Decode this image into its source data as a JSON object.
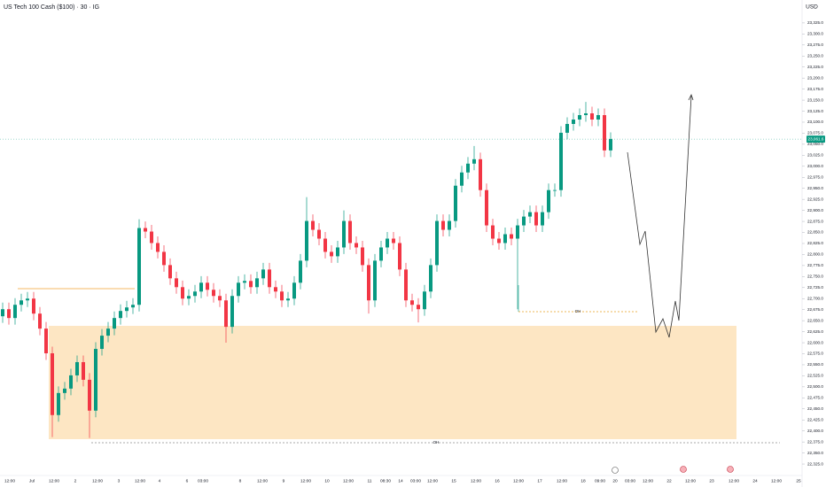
{
  "chart_data": {
    "type": "candlestick",
    "title": "US Tech 100 Cash ($100) · 30 · IG",
    "currency": "USD",
    "up_color": "#089981",
    "down_color": "#f23645",
    "grid": false,
    "ylim": [
      22299,
      23377
    ],
    "yticks": [
      {
        "value": 23325,
        "label": "23,325.0"
      },
      {
        "value": 23300,
        "label": "23,300.0"
      },
      {
        "value": 23275,
        "label": "23,275.0"
      },
      {
        "value": 23250,
        "label": "23,250.0"
      },
      {
        "value": 23225,
        "label": "23,225.0"
      },
      {
        "value": 23200,
        "label": "23,200.0"
      },
      {
        "value": 23175,
        "label": "23,175.0"
      },
      {
        "value": 23150,
        "label": "23,150.0"
      },
      {
        "value": 23125,
        "label": "23,125.0"
      },
      {
        "value": 23100,
        "label": "23,100.0"
      },
      {
        "value": 23075,
        "label": "23,075.0"
      },
      {
        "value": 23050,
        "label": "23,050.0"
      },
      {
        "value": 23025,
        "label": "23,025.0"
      },
      {
        "value": 23000,
        "label": "23,000.0"
      },
      {
        "value": 22975,
        "label": "22,975.0"
      },
      {
        "value": 22950,
        "label": "22,950.0"
      },
      {
        "value": 22925,
        "label": "22,925.0"
      },
      {
        "value": 22900,
        "label": "22,900.0"
      },
      {
        "value": 22875,
        "label": "22,875.0"
      },
      {
        "value": 22850,
        "label": "22,850.0"
      },
      {
        "value": 22825,
        "label": "22,825.0"
      },
      {
        "value": 22800,
        "label": "22,800.0"
      },
      {
        "value": 22775,
        "label": "22,775.0"
      },
      {
        "value": 22750,
        "label": "22,750.0"
      },
      {
        "value": 22725,
        "label": "22,725.0"
      },
      {
        "value": 22700,
        "label": "22,700.0"
      },
      {
        "value": 22675,
        "label": "22,675.0"
      },
      {
        "value": 22650,
        "label": "22,650.0"
      },
      {
        "value": 22625,
        "label": "22,625.0"
      },
      {
        "value": 22600,
        "label": "22,600.0"
      },
      {
        "value": 22575,
        "label": "22,575.0"
      },
      {
        "value": 22550,
        "label": "22,550.0"
      },
      {
        "value": 22525,
        "label": "22,525.0"
      },
      {
        "value": 22500,
        "label": "22,500.0"
      },
      {
        "value": 22475,
        "label": "22,475.0"
      },
      {
        "value": 22450,
        "label": "22,450.0"
      },
      {
        "value": 22425,
        "label": "22,425.0"
      },
      {
        "value": 22400,
        "label": "22,400.0"
      },
      {
        "value": 22375,
        "label": "22,375.0"
      },
      {
        "value": 22350,
        "label": "22,350.0"
      },
      {
        "value": 22325,
        "label": "22,325.0"
      }
    ],
    "last_price": {
      "value": 23061.6,
      "label": "23,061.6"
    },
    "x_labels": [
      "12:00",
      "Jul",
      "12:00",
      "2",
      "12:00",
      "3",
      "12:00",
      "4",
      "6",
      "03:00",
      "8",
      "12:00",
      "9",
      "12:00",
      "10",
      "12:00",
      "11",
      "08:30",
      "14",
      "03:00",
      "12:00",
      "15",
      "12:00",
      "16",
      "12:00",
      "17",
      "12:00",
      "18",
      "09:00",
      "20",
      "03:00",
      "12:00",
      "22",
      "12:00",
      "23",
      "12:00",
      "24",
      "12:00",
      "25"
    ],
    "annotations": [
      "OH",
      "OH"
    ],
    "open": [
      22660,
      22676,
      22656,
      22686,
      22696,
      22700,
      22666,
      22632,
      22576,
      22436,
      22486,
      22496,
      22526,
      22556,
      22516,
      22446,
      22586,
      22616,
      22632,
      22656,
      22672,
      22680,
      22686,
      22860,
      22852,
      22826,
      22806,
      22776,
      22746,
      22726,
      22700,
      22706,
      22716,
      22736,
      22720,
      22706,
      22696,
      22636,
      22706,
      22736,
      22740,
      22726,
      22746,
      22766,
      22726,
      22716,
      22696,
      22700,
      22736,
      22786,
      22876,
      22856,
      22836,
      22806,
      22796,
      22816,
      22876,
      22826,
      22816,
      22776,
      22696,
      22786,
      22816,
      22836,
      22826,
      22766,
      22696,
      22686,
      22676,
      22716,
      22776,
      22876,
      22856,
      22876,
      22956,
      22986,
      23006,
      23016,
      22946,
      22866,
      22836,
      22826,
      22846,
      22836,
      22866,
      22886,
      22896,
      22866,
      22896,
      22946,
      22946,
      23076,
      23096,
      23106,
      23116,
      23120,
      23106,
      23116,
      23036
    ],
    "high": [
      22691,
      22691,
      22701,
      22711,
      22715,
      22715,
      22681,
      22647,
      22591,
      22501,
      22511,
      22541,
      22571,
      22571,
      22531,
      22601,
      22631,
      22647,
      22671,
      22687,
      22695,
      22701,
      22880,
      22875,
      22867,
      22841,
      22821,
      22791,
      22761,
      22741,
      22721,
      22731,
      22751,
      22751,
      22735,
      22721,
      22711,
      22721,
      22751,
      22755,
      22755,
      22761,
      22781,
      22781,
      22741,
      22731,
      22715,
      22751,
      22801,
      22930,
      22891,
      22871,
      22851,
      22821,
      22831,
      22900,
      22891,
      22841,
      22831,
      22791,
      22801,
      22831,
      22851,
      22851,
      22841,
      22781,
      22711,
      22701,
      22731,
      22791,
      22891,
      22891,
      22891,
      22971,
      23001,
      23021,
      23046,
      23031,
      22961,
      22881,
      22851,
      22861,
      22861,
      22881,
      22901,
      22911,
      22911,
      22911,
      22961,
      22961,
      23091,
      23111,
      23121,
      23131,
      23146,
      23135,
      23131,
      23131,
      23077
    ],
    "low": [
      22645,
      22641,
      22641,
      22671,
      22681,
      22651,
      22617,
      22561,
      22386,
      22421,
      22471,
      22481,
      22511,
      22501,
      22384,
      22431,
      22571,
      22601,
      22617,
      22641,
      22657,
      22665,
      22671,
      22837,
      22811,
      22791,
      22761,
      22731,
      22711,
      22685,
      22685,
      22691,
      22701,
      22705,
      22691,
      22681,
      22600,
      22621,
      22691,
      22721,
      22711,
      22711,
      22731,
      22711,
      22701,
      22681,
      22681,
      22685,
      22721,
      22771,
      22841,
      22821,
      22791,
      22781,
      22781,
      22801,
      22811,
      22801,
      22761,
      22666,
      22681,
      22771,
      22801,
      22811,
      22751,
      22681,
      22671,
      22646,
      22661,
      22701,
      22761,
      22841,
      22841,
      22861,
      22941,
      22971,
      22991,
      22931,
      22851,
      22821,
      22811,
      22811,
      22821,
      22676,
      22851,
      22871,
      22851,
      22851,
      22881,
      22931,
      22931,
      23061,
      23081,
      23091,
      23101,
      23091,
      23091,
      23021,
      23021
    ],
    "close": [
      22676,
      22656,
      22686,
      22696,
      22700,
      22666,
      22632,
      22576,
      22436,
      22486,
      22496,
      22526,
      22556,
      22516,
      22446,
      22586,
      22616,
      22632,
      22656,
      22672,
      22680,
      22686,
      22860,
      22852,
      22826,
      22806,
      22776,
      22746,
      22726,
      22700,
      22706,
      22716,
      22736,
      22720,
      22706,
      22696,
      22636,
      22706,
      22736,
      22740,
      22726,
      22746,
      22766,
      22726,
      22716,
      22696,
      22700,
      22736,
      22786,
      22876,
      22856,
      22836,
      22806,
      22796,
      22816,
      22876,
      22826,
      22816,
      22776,
      22696,
      22786,
      22816,
      22836,
      22826,
      22766,
      22696,
      22686,
      22676,
      22716,
      22776,
      22876,
      22856,
      22876,
      22956,
      22986,
      23006,
      23016,
      22946,
      22866,
      22836,
      22826,
      22846,
      22836,
      22866,
      22886,
      22896,
      22866,
      22896,
      22946,
      22946,
      23076,
      23096,
      23106,
      23116,
      23120,
      23106,
      23116,
      23036,
      23062
    ]
  }
}
